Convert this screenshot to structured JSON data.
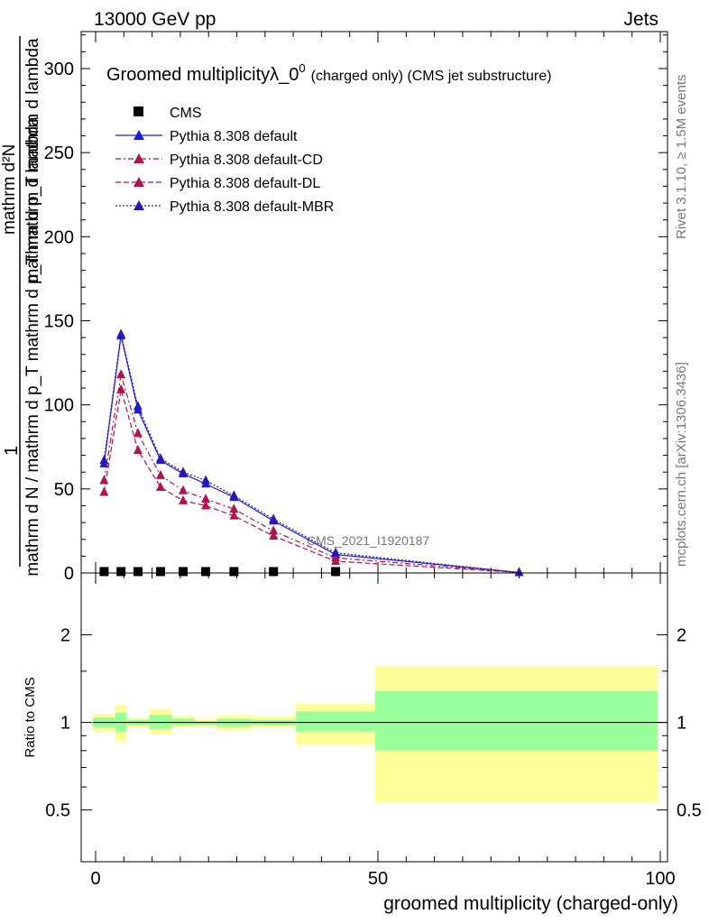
{
  "header": {
    "left": "13000 GeV pp",
    "right": "Jets"
  },
  "side_labels": {
    "rivet": "Rivet 3.1.10, ≥ 1.5M events",
    "mcplots": "mcplots.cern.ch [arXiv:1306.3436]"
  },
  "watermark": "CMS_2021_I1920187",
  "chart_data": [
    {
      "type": "line",
      "title": "Groomed multiplicity",
      "title_symbol": "λ_0",
      "title_sup": "0",
      "title_suffix": "(charged only) (CMS jet substructure)",
      "ylabel_top": "1",
      "ylabel_bottom": "mathrm d N / mathrm d p_T mathrm d p_T mathrm d lambda",
      "ylabel_num": "mathrm d²N",
      "ylabel_den": "mathrm d p_T mathrm d lambda",
      "xlim": [
        -4,
        100
      ],
      "ylim": [
        0,
        322
      ],
      "yticks": [
        0,
        50,
        100,
        150,
        200,
        250,
        300
      ],
      "legend_position": "top-left",
      "legend": [
        {
          "label": "CMS",
          "style": "square",
          "color": "#000000"
        },
        {
          "label": "Pythia 8.308 default",
          "style": "solid",
          "color": "#1a1adb"
        },
        {
          "label": "Pythia 8.308 default-CD",
          "style": "dashdot",
          "color": "#b0134e"
        },
        {
          "label": "Pythia 8.308 default-DL",
          "style": "dashed",
          "color": "#b0134e"
        },
        {
          "label": "Pythia 8.308 default-MBR",
          "style": "dotted",
          "color": "#2a17b5"
        }
      ],
      "series": [
        {
          "name": "CMS",
          "x": [
            1.5,
            4.5,
            7.5,
            11.5,
            15.5,
            19.5,
            24.5,
            31.5,
            42.5
          ],
          "values": [
            0.3,
            0.3,
            0.3,
            0.3,
            0.3,
            0.3,
            0.3,
            0.3,
            0.3
          ]
        },
        {
          "name": "Pythia 8.308 default",
          "x": [
            1.5,
            4.5,
            7.5,
            11.5,
            15.5,
            19.5,
            24.5,
            31.5,
            42.5,
            75
          ],
          "values": [
            65,
            141,
            97,
            67,
            59,
            53,
            45,
            31,
            11,
            0.3
          ]
        },
        {
          "name": "Pythia 8.308 default-CD",
          "x": [
            1.5,
            4.5,
            7.5,
            11.5,
            15.5,
            19.5,
            24.5,
            31.5,
            42.5,
            75
          ],
          "values": [
            55,
            118,
            83,
            58,
            49,
            44,
            38,
            25,
            9,
            0.3
          ]
        },
        {
          "name": "Pythia 8.308 default-DL",
          "x": [
            1.5,
            4.5,
            7.5,
            11.5,
            15.5,
            19.5,
            24.5,
            31.5,
            42.5,
            75
          ],
          "values": [
            48,
            109,
            73,
            51,
            43,
            40,
            34,
            22,
            7,
            0.3
          ]
        },
        {
          "name": "Pythia 8.308 default-MBR",
          "x": [
            1.5,
            4.5,
            7.5,
            11.5,
            15.5,
            19.5,
            24.5,
            31.5,
            42.5,
            75
          ],
          "values": [
            67,
            142,
            99,
            68,
            60,
            55,
            46,
            32,
            12,
            0.3
          ]
        }
      ]
    },
    {
      "type": "area",
      "ylabel": "Ratio to CMS",
      "xlabel": "groomed multiplicity (charged-only)",
      "xlim": [
        -4,
        100
      ],
      "ylim": [
        0.35,
        2.25
      ],
      "xticks": [
        0,
        50,
        100
      ],
      "yticks": [
        0.5,
        1,
        2
      ],
      "reference_line": 1,
      "bands": [
        {
          "x0": -0.5,
          "x1": 3.5,
          "green": [
            0.96,
            1.04
          ],
          "yellow": [
            0.93,
            1.07
          ]
        },
        {
          "x0": 3.5,
          "x1": 5.5,
          "green": [
            0.93,
            1.08
          ],
          "yellow": [
            0.86,
            1.15
          ]
        },
        {
          "x0": 5.5,
          "x1": 9.5,
          "green": [
            0.98,
            1.02
          ],
          "yellow": [
            0.96,
            1.04
          ]
        },
        {
          "x0": 9.5,
          "x1": 13.5,
          "green": [
            0.95,
            1.06
          ],
          "yellow": [
            0.91,
            1.11
          ]
        },
        {
          "x0": 13.5,
          "x1": 17.5,
          "green": [
            0.98,
            1.03
          ],
          "yellow": [
            0.96,
            1.05
          ]
        },
        {
          "x0": 17.5,
          "x1": 21.5,
          "green": [
            0.98,
            1.01
          ],
          "yellow": [
            0.97,
            1.03
          ]
        },
        {
          "x0": 21.5,
          "x1": 27.5,
          "green": [
            0.97,
            1.03
          ],
          "yellow": [
            0.94,
            1.06
          ]
        },
        {
          "x0": 27.5,
          "x1": 35.5,
          "green": [
            0.98,
            1.02
          ],
          "yellow": [
            0.96,
            1.05
          ]
        },
        {
          "x0": 35.5,
          "x1": 49.5,
          "green": [
            0.93,
            1.09
          ],
          "yellow": [
            0.84,
            1.16
          ]
        },
        {
          "x0": 49.5,
          "x1": 99.5,
          "green": [
            0.8,
            1.28
          ],
          "yellow": [
            0.53,
            1.56
          ]
        }
      ]
    }
  ]
}
